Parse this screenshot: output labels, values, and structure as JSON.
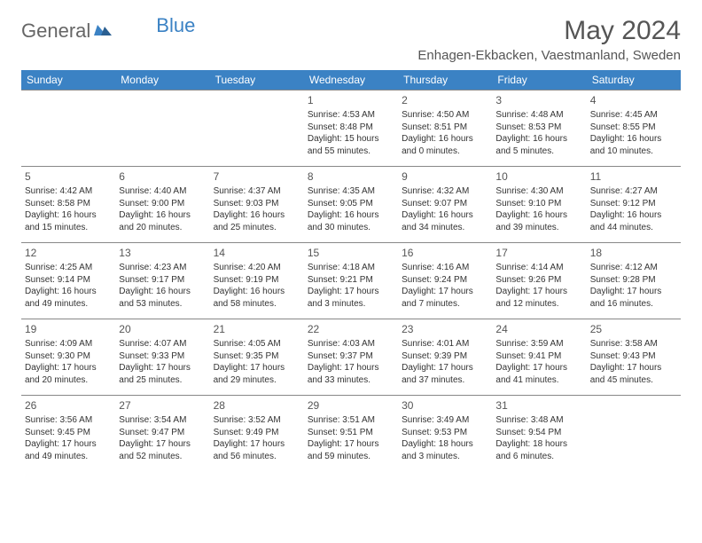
{
  "brand": {
    "name": "General",
    "suffix": "Blue"
  },
  "title": "May 2024",
  "location": "Enhagen-Ekbacken, Vaestmanland, Sweden",
  "colors": {
    "header_bg": "#3b82c4",
    "header_text": "#ffffff",
    "border": "#888888",
    "text": "#333333",
    "title_text": "#555555",
    "background": "#ffffff"
  },
  "day_headers": [
    "Sunday",
    "Monday",
    "Tuesday",
    "Wednesday",
    "Thursday",
    "Friday",
    "Saturday"
  ],
  "weeks": [
    [
      null,
      null,
      null,
      {
        "d": "1",
        "sr": "4:53 AM",
        "ss": "8:48 PM",
        "dl": "15 hours and 55 minutes."
      },
      {
        "d": "2",
        "sr": "4:50 AM",
        "ss": "8:51 PM",
        "dl": "16 hours and 0 minutes."
      },
      {
        "d": "3",
        "sr": "4:48 AM",
        "ss": "8:53 PM",
        "dl": "16 hours and 5 minutes."
      },
      {
        "d": "4",
        "sr": "4:45 AM",
        "ss": "8:55 PM",
        "dl": "16 hours and 10 minutes."
      }
    ],
    [
      {
        "d": "5",
        "sr": "4:42 AM",
        "ss": "8:58 PM",
        "dl": "16 hours and 15 minutes."
      },
      {
        "d": "6",
        "sr": "4:40 AM",
        "ss": "9:00 PM",
        "dl": "16 hours and 20 minutes."
      },
      {
        "d": "7",
        "sr": "4:37 AM",
        "ss": "9:03 PM",
        "dl": "16 hours and 25 minutes."
      },
      {
        "d": "8",
        "sr": "4:35 AM",
        "ss": "9:05 PM",
        "dl": "16 hours and 30 minutes."
      },
      {
        "d": "9",
        "sr": "4:32 AM",
        "ss": "9:07 PM",
        "dl": "16 hours and 34 minutes."
      },
      {
        "d": "10",
        "sr": "4:30 AM",
        "ss": "9:10 PM",
        "dl": "16 hours and 39 minutes."
      },
      {
        "d": "11",
        "sr": "4:27 AM",
        "ss": "9:12 PM",
        "dl": "16 hours and 44 minutes."
      }
    ],
    [
      {
        "d": "12",
        "sr": "4:25 AM",
        "ss": "9:14 PM",
        "dl": "16 hours and 49 minutes."
      },
      {
        "d": "13",
        "sr": "4:23 AM",
        "ss": "9:17 PM",
        "dl": "16 hours and 53 minutes."
      },
      {
        "d": "14",
        "sr": "4:20 AM",
        "ss": "9:19 PM",
        "dl": "16 hours and 58 minutes."
      },
      {
        "d": "15",
        "sr": "4:18 AM",
        "ss": "9:21 PM",
        "dl": "17 hours and 3 minutes."
      },
      {
        "d": "16",
        "sr": "4:16 AM",
        "ss": "9:24 PM",
        "dl": "17 hours and 7 minutes."
      },
      {
        "d": "17",
        "sr": "4:14 AM",
        "ss": "9:26 PM",
        "dl": "17 hours and 12 minutes."
      },
      {
        "d": "18",
        "sr": "4:12 AM",
        "ss": "9:28 PM",
        "dl": "17 hours and 16 minutes."
      }
    ],
    [
      {
        "d": "19",
        "sr": "4:09 AM",
        "ss": "9:30 PM",
        "dl": "17 hours and 20 minutes."
      },
      {
        "d": "20",
        "sr": "4:07 AM",
        "ss": "9:33 PM",
        "dl": "17 hours and 25 minutes."
      },
      {
        "d": "21",
        "sr": "4:05 AM",
        "ss": "9:35 PM",
        "dl": "17 hours and 29 minutes."
      },
      {
        "d": "22",
        "sr": "4:03 AM",
        "ss": "9:37 PM",
        "dl": "17 hours and 33 minutes."
      },
      {
        "d": "23",
        "sr": "4:01 AM",
        "ss": "9:39 PM",
        "dl": "17 hours and 37 minutes."
      },
      {
        "d": "24",
        "sr": "3:59 AM",
        "ss": "9:41 PM",
        "dl": "17 hours and 41 minutes."
      },
      {
        "d": "25",
        "sr": "3:58 AM",
        "ss": "9:43 PM",
        "dl": "17 hours and 45 minutes."
      }
    ],
    [
      {
        "d": "26",
        "sr": "3:56 AM",
        "ss": "9:45 PM",
        "dl": "17 hours and 49 minutes."
      },
      {
        "d": "27",
        "sr": "3:54 AM",
        "ss": "9:47 PM",
        "dl": "17 hours and 52 minutes."
      },
      {
        "d": "28",
        "sr": "3:52 AM",
        "ss": "9:49 PM",
        "dl": "17 hours and 56 minutes."
      },
      {
        "d": "29",
        "sr": "3:51 AM",
        "ss": "9:51 PM",
        "dl": "17 hours and 59 minutes."
      },
      {
        "d": "30",
        "sr": "3:49 AM",
        "ss": "9:53 PM",
        "dl": "18 hours and 3 minutes."
      },
      {
        "d": "31",
        "sr": "3:48 AM",
        "ss": "9:54 PM",
        "dl": "18 hours and 6 minutes."
      },
      null
    ]
  ],
  "labels": {
    "sunrise": "Sunrise:",
    "sunset": "Sunset:",
    "daylight": "Daylight:"
  }
}
